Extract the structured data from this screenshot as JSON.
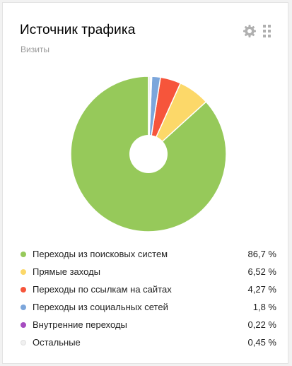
{
  "widget": {
    "title": "Источник трафика",
    "subtitle": "Визиты",
    "settings_icon": "gear-icon",
    "drag_icon": "drag-handle-icon"
  },
  "chart_data": {
    "type": "pie",
    "categories": [
      "Переходы из поисковых систем",
      "Прямые заходы",
      "Переходы по ссылкам на сайтах",
      "Переходы из социальных сетей",
      "Внутренние переходы",
      "Остальные"
    ],
    "values": [
      86.7,
      6.52,
      4.27,
      1.8,
      0.22,
      0.45
    ],
    "value_labels": [
      "86,7 %",
      "6,52 %",
      "4,27 %",
      "1,8 %",
      "0,22 %",
      "0,45 %"
    ],
    "colors": [
      "#96c95a",
      "#fcd869",
      "#f6553b",
      "#7ca6db",
      "#a64cc0",
      "#f0f0f0"
    ],
    "legend_position": "bottom",
    "donut": true
  }
}
